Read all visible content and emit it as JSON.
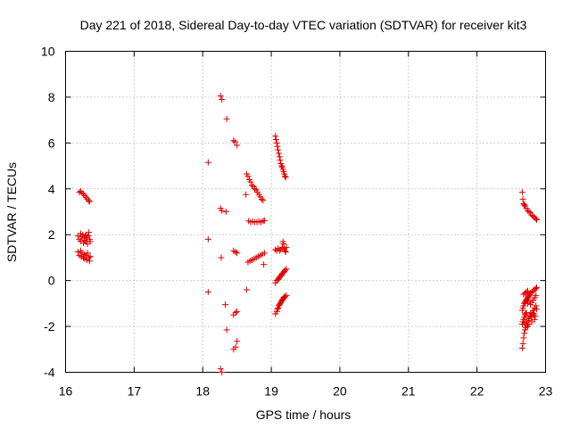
{
  "chart_data": {
    "type": "scatter",
    "title": "Day 221 of 2018, Sidereal Day-to-day VTEC variation (SDTVAR) for receiver kit3",
    "xlabel": "GPS time / hours",
    "ylabel": "SDTVAR / TECUs",
    "xlim": [
      16,
      23
    ],
    "ylim": [
      -4,
      10
    ],
    "xticks": [
      16,
      17,
      18,
      19,
      20,
      21,
      22,
      23
    ],
    "yticks": [
      -4,
      -2,
      0,
      2,
      4,
      6,
      8,
      10
    ],
    "grid": true,
    "marker": "plus",
    "color": "#e00000",
    "series": [
      {
        "name": "SDTVAR",
        "points": [
          [
            16.2,
            3.85
          ],
          [
            16.22,
            3.9
          ],
          [
            16.24,
            3.82
          ],
          [
            16.26,
            3.78
          ],
          [
            16.28,
            3.7
          ],
          [
            16.3,
            3.62
          ],
          [
            16.32,
            3.55
          ],
          [
            16.34,
            3.48
          ],
          [
            16.35,
            3.45
          ],
          [
            16.18,
            1.95
          ],
          [
            16.2,
            1.8
          ],
          [
            16.22,
            1.72
          ],
          [
            16.24,
            1.9
          ],
          [
            16.25,
            2.0
          ],
          [
            16.26,
            1.65
          ],
          [
            16.27,
            1.85
          ],
          [
            16.28,
            1.75
          ],
          [
            16.29,
            1.95
          ],
          [
            16.3,
            1.7
          ],
          [
            16.31,
            1.88
          ],
          [
            16.32,
            1.6
          ],
          [
            16.33,
            1.95
          ],
          [
            16.34,
            2.1
          ],
          [
            16.35,
            1.8
          ],
          [
            16.36,
            1.7
          ],
          [
            16.22,
            2.05
          ],
          [
            16.3,
            2.0
          ],
          [
            16.18,
            1.25
          ],
          [
            16.2,
            1.1
          ],
          [
            16.22,
            1.3
          ],
          [
            16.23,
            1.05
          ],
          [
            16.24,
            1.2
          ],
          [
            16.26,
            1.0
          ],
          [
            16.27,
            1.15
          ],
          [
            16.28,
            0.95
          ],
          [
            16.3,
            1.1
          ],
          [
            16.31,
            0.9
          ],
          [
            16.32,
            1.2
          ],
          [
            16.34,
            1.0
          ],
          [
            16.35,
            0.85
          ],
          [
            16.36,
            1.05
          ],
          [
            18.08,
            5.15
          ],
          [
            18.08,
            1.8
          ],
          [
            18.08,
            -0.5
          ],
          [
            18.26,
            8.05
          ],
          [
            18.28,
            7.9
          ],
          [
            18.35,
            7.05
          ],
          [
            18.26,
            3.15
          ],
          [
            18.28,
            3.05
          ],
          [
            18.34,
            3.0
          ],
          [
            18.27,
            1.0
          ],
          [
            18.26,
            -3.85
          ],
          [
            18.28,
            -4.0
          ],
          [
            18.33,
            -1.05
          ],
          [
            18.35,
            -2.15
          ],
          [
            18.45,
            6.1
          ],
          [
            18.47,
            6.05
          ],
          [
            18.5,
            5.9
          ],
          [
            18.45,
            1.3
          ],
          [
            18.48,
            1.25
          ],
          [
            18.5,
            1.2
          ],
          [
            18.45,
            -1.5
          ],
          [
            18.48,
            -1.4
          ],
          [
            18.5,
            -1.35
          ],
          [
            18.45,
            -3.0
          ],
          [
            18.48,
            -2.9
          ],
          [
            18.5,
            -2.65
          ],
          [
            18.64,
            4.65
          ],
          [
            18.66,
            4.55
          ],
          [
            18.68,
            4.4
          ],
          [
            18.7,
            4.3
          ],
          [
            18.72,
            4.15
          ],
          [
            18.74,
            4.1
          ],
          [
            18.76,
            4.0
          ],
          [
            18.78,
            3.95
          ],
          [
            18.8,
            3.85
          ],
          [
            18.82,
            3.75
          ],
          [
            18.84,
            3.65
          ],
          [
            18.86,
            3.55
          ],
          [
            18.88,
            3.5
          ],
          [
            18.63,
            3.75
          ],
          [
            18.67,
            2.6
          ],
          [
            18.7,
            2.55
          ],
          [
            18.73,
            2.58
          ],
          [
            18.76,
            2.55
          ],
          [
            18.79,
            2.55
          ],
          [
            18.82,
            2.58
          ],
          [
            18.85,
            2.55
          ],
          [
            18.88,
            2.6
          ],
          [
            18.9,
            2.62
          ],
          [
            18.66,
            0.8
          ],
          [
            18.69,
            0.85
          ],
          [
            18.72,
            0.9
          ],
          [
            18.75,
            0.95
          ],
          [
            18.78,
            1.0
          ],
          [
            18.81,
            1.05
          ],
          [
            18.84,
            1.1
          ],
          [
            18.87,
            1.15
          ],
          [
            18.9,
            1.2
          ],
          [
            18.89,
            0.7
          ],
          [
            18.64,
            -0.4
          ],
          [
            19.06,
            6.3
          ],
          [
            19.07,
            6.15
          ],
          [
            19.08,
            6.0
          ],
          [
            19.09,
            5.85
          ],
          [
            19.1,
            5.7
          ],
          [
            19.11,
            5.55
          ],
          [
            19.12,
            5.4
          ],
          [
            19.13,
            5.25
          ],
          [
            19.14,
            5.1
          ],
          [
            19.15,
            5.0
          ],
          [
            19.16,
            4.95
          ],
          [
            19.17,
            4.85
          ],
          [
            19.18,
            4.75
          ],
          [
            19.19,
            4.65
          ],
          [
            19.2,
            4.55
          ],
          [
            19.21,
            4.5
          ],
          [
            19.06,
            1.35
          ],
          [
            19.08,
            1.3
          ],
          [
            19.1,
            1.4
          ],
          [
            19.12,
            1.3
          ],
          [
            19.14,
            1.35
          ],
          [
            19.16,
            1.45
          ],
          [
            19.17,
            1.7
          ],
          [
            19.18,
            1.6
          ],
          [
            19.19,
            1.4
          ],
          [
            19.2,
            1.3
          ],
          [
            19.21,
            1.25
          ],
          [
            19.22,
            1.45
          ],
          [
            19.06,
            -0.1
          ],
          [
            19.08,
            0.0
          ],
          [
            19.1,
            0.05
          ],
          [
            19.11,
            0.1
          ],
          [
            19.12,
            0.15
          ],
          [
            19.14,
            0.2
          ],
          [
            19.15,
            0.25
          ],
          [
            19.16,
            0.3
          ],
          [
            19.18,
            0.35
          ],
          [
            19.19,
            0.4
          ],
          [
            19.2,
            0.45
          ],
          [
            19.22,
            0.5
          ],
          [
            19.06,
            -1.45
          ],
          [
            19.08,
            -1.35
          ],
          [
            19.09,
            -1.25
          ],
          [
            19.1,
            -1.2
          ],
          [
            19.11,
            -1.1
          ],
          [
            19.12,
            -1.05
          ],
          [
            19.13,
            -1.0
          ],
          [
            19.14,
            -0.95
          ],
          [
            19.15,
            -0.9
          ],
          [
            19.16,
            -0.85
          ],
          [
            19.17,
            -0.8
          ],
          [
            19.18,
            -0.75
          ],
          [
            19.19,
            -0.72
          ],
          [
            19.2,
            -0.7
          ],
          [
            19.22,
            -0.65
          ],
          [
            22.66,
            3.85
          ],
          [
            22.67,
            3.55
          ],
          [
            22.68,
            3.35
          ],
          [
            22.69,
            3.3
          ],
          [
            22.7,
            3.25
          ],
          [
            22.72,
            3.15
          ],
          [
            22.74,
            3.05
          ],
          [
            22.76,
            3.0
          ],
          [
            22.78,
            2.95
          ],
          [
            22.8,
            2.85
          ],
          [
            22.82,
            2.8
          ],
          [
            22.84,
            2.75
          ],
          [
            22.86,
            2.7
          ],
          [
            22.87,
            2.65
          ],
          [
            22.66,
            -2.95
          ],
          [
            22.67,
            -2.75
          ],
          [
            22.68,
            -2.5
          ],
          [
            22.69,
            -2.3
          ],
          [
            22.7,
            -2.15
          ],
          [
            22.71,
            -2.05
          ],
          [
            22.66,
            -1.9
          ],
          [
            22.67,
            -1.8
          ],
          [
            22.68,
            -1.7
          ],
          [
            22.69,
            -1.6
          ],
          [
            22.7,
            -1.5
          ],
          [
            22.71,
            -1.45
          ],
          [
            22.72,
            -1.4
          ],
          [
            22.66,
            -1.3
          ],
          [
            22.67,
            -1.2
          ],
          [
            22.68,
            -1.1
          ],
          [
            22.69,
            -1.0
          ],
          [
            22.7,
            -0.95
          ],
          [
            22.71,
            -0.9
          ],
          [
            22.72,
            -0.85
          ],
          [
            22.73,
            -0.8
          ],
          [
            22.74,
            -0.75
          ],
          [
            22.75,
            -0.7
          ],
          [
            22.76,
            -0.65
          ],
          [
            22.77,
            -0.6
          ],
          [
            22.78,
            -0.55
          ],
          [
            22.8,
            -0.5
          ],
          [
            22.82,
            -0.45
          ],
          [
            22.84,
            -0.4
          ],
          [
            22.86,
            -0.35
          ],
          [
            22.87,
            -0.3
          ],
          [
            22.68,
            -0.6
          ],
          [
            22.7,
            -0.55
          ],
          [
            22.72,
            -0.5
          ],
          [
            22.74,
            -0.45
          ],
          [
            22.73,
            -1.8
          ],
          [
            22.75,
            -1.65
          ],
          [
            22.76,
            -1.75
          ],
          [
            22.77,
            -1.55
          ],
          [
            22.78,
            -1.45
          ],
          [
            22.79,
            -1.6
          ],
          [
            22.8,
            -1.4
          ],
          [
            22.81,
            -1.5
          ],
          [
            22.82,
            -1.3
          ],
          [
            22.83,
            -1.45
          ],
          [
            22.84,
            -1.2
          ],
          [
            22.85,
            -1.55
          ],
          [
            22.86,
            -1.1
          ],
          [
            22.87,
            -1.25
          ],
          [
            22.74,
            -1.0
          ],
          [
            22.76,
            -0.9
          ],
          [
            22.78,
            -1.05
          ],
          [
            22.8,
            -0.95
          ],
          [
            22.82,
            -0.85
          ],
          [
            22.84,
            -0.75
          ],
          [
            22.86,
            -0.65
          ],
          [
            22.7,
            -1.85
          ],
          [
            22.72,
            -1.95
          ],
          [
            22.74,
            -2.0
          ],
          [
            22.76,
            -1.9
          ],
          [
            22.8,
            -1.8
          ],
          [
            22.84,
            -1.7
          ]
        ]
      }
    ]
  }
}
